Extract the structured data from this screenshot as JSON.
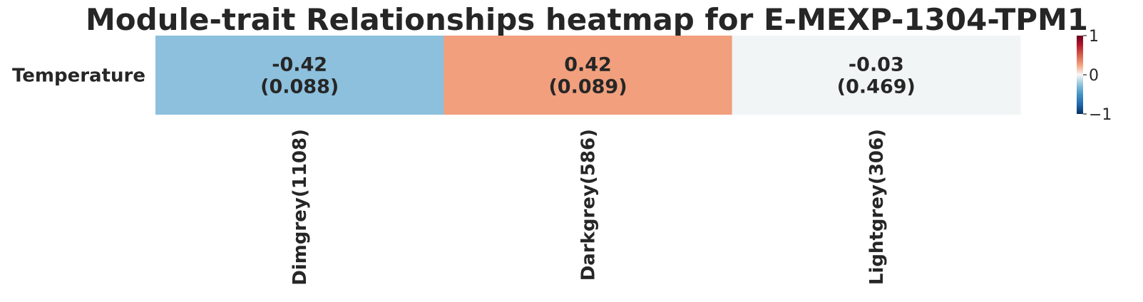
{
  "chart_data": {
    "type": "heatmap",
    "title": "Module-trait Relationships heatmap for E-MEXP-1304-TPM1",
    "rows": [
      "Temperature"
    ],
    "columns": [
      "Dimgrey(1108)",
      "Darkgrey(586)",
      "Lightgrey(306)"
    ],
    "values": [
      [
        -0.42,
        0.42,
        -0.03
      ]
    ],
    "cell_labels": [
      [
        "-0.42\n(0.088)",
        "0.42\n(0.089)",
        "-0.03\n(0.469)"
      ]
    ],
    "annotations": [
      [
        {
          "value": "-0.42",
          "pvalue": "(0.088)"
        },
        {
          "value": "0.42",
          "pvalue": "(0.089)"
        },
        {
          "value": "-0.03",
          "pvalue": "(0.469)"
        }
      ]
    ],
    "colorbar": {
      "range": [
        -1,
        1
      ],
      "ticks": [
        {
          "value": 1,
          "label": "1"
        },
        {
          "value": 0,
          "label": "0"
        },
        {
          "value": -1,
          "label": "−1"
        }
      ],
      "colormap": "RdBu_r"
    },
    "colors": {
      "neg": "#053061",
      "mid": "#f7f7f7",
      "pos": "#67001f",
      "cell_neg": "#8cc0dd",
      "cell_pos": "#f19f7d",
      "cell_near_zero": "#f1f5f6"
    }
  }
}
